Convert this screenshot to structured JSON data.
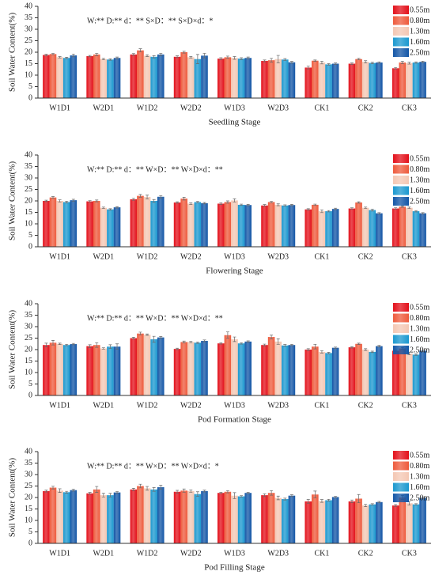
{
  "chart_data": [
    {
      "type": "bar",
      "xlabel": "Seedling Stage",
      "ylabel": "Soil Water Content(%)",
      "annotation": "W:** D:**  d：** S×D：** S×D×d：*",
      "categories": [
        "W1D1",
        "W2D1",
        "W1D2",
        "W2D2",
        "W1D3",
        "W2D3",
        "CK1",
        "CK2",
        "CK3"
      ],
      "ylim": [
        0,
        40
      ],
      "yticks": [
        0,
        5,
        10,
        15,
        20,
        25,
        30,
        35,
        40
      ],
      "legend": "upper right",
      "series": [
        {
          "name": "0.55m",
          "color": "#e3101a",
          "values": [
            18.8,
            18.3,
            19.0,
            18.0,
            17.2,
            16.2,
            13.3,
            15.0,
            13.0
          ],
          "errors": [
            0.3,
            0.3,
            0.4,
            0.4,
            0.4,
            0.4,
            0.6,
            0.3,
            0.3
          ]
        },
        {
          "name": "0.80m",
          "color": "#ee5a3c",
          "values": [
            19.2,
            19.0,
            20.8,
            20.0,
            17.8,
            16.5,
            16.3,
            17.0,
            15.5
          ],
          "errors": [
            0.3,
            0.5,
            0.7,
            0.4,
            0.5,
            0.8,
            0.3,
            0.3,
            0.5
          ]
        },
        {
          "name": "1.30m",
          "color": "#f4c7b3",
          "values": [
            17.8,
            17.0,
            18.5,
            17.8,
            17.5,
            17.0,
            15.5,
            15.8,
            15.2
          ],
          "errors": [
            0.3,
            0.3,
            0.4,
            0.3,
            0.6,
            1.6,
            0.6,
            0.5,
            0.4
          ]
        },
        {
          "name": "1.60m",
          "color": "#1b98cf",
          "values": [
            17.5,
            16.8,
            18.0,
            17.0,
            17.2,
            16.8,
            14.7,
            15.3,
            15.5
          ],
          "errors": [
            0.3,
            0.3,
            0.5,
            2.0,
            0.4,
            0.4,
            0.3,
            0.3,
            0.3
          ]
        },
        {
          "name": "2.50m",
          "color": "#1356a6",
          "values": [
            18.6,
            17.5,
            19.0,
            18.5,
            17.5,
            15.6,
            15.0,
            15.5,
            15.8
          ],
          "errors": [
            0.6,
            0.4,
            0.5,
            1.0,
            0.4,
            0.4,
            0.3,
            0.3,
            0.3
          ]
        }
      ]
    },
    {
      "type": "bar",
      "xlabel": "Flowering Stage",
      "ylabel": "Soil Water Content(%)",
      "annotation": "W:** D:**  d：** W×D：** W×D×d：**",
      "categories": [
        "W1D1",
        "W2D1",
        "W1D2",
        "W2D2",
        "W1D3",
        "W2D3",
        "CK1",
        "CK2",
        "CK3"
      ],
      "ylim": [
        0,
        40
      ],
      "yticks": [
        0,
        5,
        10,
        15,
        20,
        25,
        30,
        35,
        40
      ],
      "legend": "upper right",
      "series": [
        {
          "name": "0.55m",
          "color": "#e3101a",
          "values": [
            20.0,
            19.8,
            20.7,
            19.3,
            18.8,
            18.0,
            16.3,
            16.7,
            16.7
          ],
          "errors": [
            0.3,
            0.3,
            0.4,
            0.3,
            0.4,
            0.4,
            0.3,
            0.3,
            0.3
          ]
        },
        {
          "name": "0.80m",
          "color": "#ee5a3c",
          "values": [
            21.5,
            20.0,
            22.2,
            21.0,
            19.5,
            19.5,
            18.3,
            19.3,
            17.5
          ],
          "errors": [
            0.4,
            0.4,
            0.6,
            0.6,
            0.5,
            0.3,
            0.3,
            0.3,
            0.3
          ]
        },
        {
          "name": "1.30m",
          "color": "#f4c7b3",
          "values": [
            20.0,
            17.0,
            21.7,
            18.8,
            20.2,
            18.3,
            15.5,
            17.0,
            17.0
          ],
          "errors": [
            0.5,
            0.3,
            0.8,
            0.3,
            0.7,
            0.4,
            0.6,
            0.3,
            0.3
          ]
        },
        {
          "name": "1.60m",
          "color": "#1b98cf",
          "values": [
            19.5,
            16.3,
            20.0,
            19.5,
            18.3,
            18.0,
            15.5,
            16.0,
            15.5
          ],
          "errors": [
            0.4,
            0.3,
            0.6,
            0.3,
            0.3,
            0.3,
            0.3,
            0.4,
            0.3
          ]
        },
        {
          "name": "2.50m",
          "color": "#1356a6",
          "values": [
            20.3,
            17.2,
            21.8,
            19.0,
            18.2,
            18.2,
            16.5,
            14.6,
            14.6
          ],
          "errors": [
            0.4,
            0.3,
            0.5,
            0.3,
            0.3,
            0.3,
            0.3,
            0.3,
            0.3
          ]
        }
      ]
    },
    {
      "type": "bar",
      "xlabel": "Pod Formation Stage",
      "ylabel": "Soil Water Content(%)",
      "annotation": "W:** D:** d：** W×D：** W×D×d：**",
      "categories": [
        "W1D1",
        "W2D1",
        "W1D2",
        "W2D2",
        "W1D3",
        "W2D3",
        "CK1",
        "CK2",
        "CK3"
      ],
      "ylim": [
        0,
        40
      ],
      "yticks": [
        0,
        5,
        10,
        15,
        20,
        25,
        30,
        35,
        40
      ],
      "legend": "upper right",
      "series": [
        {
          "name": "0.55m",
          "color": "#e3101a",
          "values": [
            22.0,
            21.5,
            25.0,
            20.3,
            22.7,
            22.0,
            20.0,
            21.0,
            19.5
          ],
          "errors": [
            0.8,
            0.6,
            0.4,
            0.3,
            0.3,
            0.4,
            0.4,
            0.3,
            0.3
          ]
        },
        {
          "name": "0.80m",
          "color": "#ee5a3c",
          "values": [
            23.0,
            22.0,
            27.0,
            23.3,
            26.3,
            25.5,
            21.3,
            22.5,
            20.5
          ],
          "errors": [
            1.0,
            1.0,
            0.6,
            0.4,
            1.4,
            0.8,
            1.0,
            0.3,
            0.4
          ]
        },
        {
          "name": "1.30m",
          "color": "#f4c7b3",
          "values": [
            22.5,
            20.5,
            26.5,
            23.3,
            24.5,
            23.5,
            19.0,
            20.0,
            18.3
          ],
          "errors": [
            0.3,
            0.3,
            0.3,
            0.3,
            1.0,
            1.2,
            0.5,
            0.4,
            0.6
          ]
        },
        {
          "name": "1.60m",
          "color": "#1b98cf",
          "values": [
            22.0,
            21.3,
            24.5,
            23.0,
            22.7,
            21.8,
            18.5,
            19.0,
            17.8
          ],
          "errors": [
            0.3,
            0.8,
            1.3,
            0.3,
            0.3,
            0.4,
            0.3,
            0.3,
            0.3
          ]
        },
        {
          "name": "2.50m",
          "color": "#1356a6",
          "values": [
            22.4,
            21.3,
            25.3,
            23.8,
            23.5,
            22.0,
            20.8,
            21.5,
            19.5
          ],
          "errors": [
            0.3,
            1.2,
            0.4,
            0.4,
            0.3,
            0.3,
            0.3,
            0.3,
            0.3
          ]
        }
      ]
    },
    {
      "type": "bar",
      "xlabel": "Pod Filling Stage",
      "ylabel": "Soil Water Content(%)",
      "annotation": "W:** D:** d：** W×D：** W×D×d：*",
      "categories": [
        "W1D1",
        "W2D1",
        "W1D2",
        "W2D2",
        "W1D3",
        "W2D3",
        "CK1",
        "CK2",
        "CK3"
      ],
      "ylim": [
        0,
        40
      ],
      "yticks": [
        0,
        5,
        10,
        15,
        20,
        25,
        30,
        35,
        40
      ],
      "legend": "upper right",
      "series": [
        {
          "name": "0.55m",
          "color": "#e3101a",
          "values": [
            22.8,
            21.8,
            23.5,
            22.5,
            22.0,
            21.0,
            18.3,
            18.3,
            16.5
          ],
          "errors": [
            0.4,
            0.4,
            0.5,
            0.6,
            0.3,
            0.6,
            0.8,
            0.6,
            0.4
          ]
        },
        {
          "name": "0.80m",
          "color": "#ee5a3c",
          "values": [
            24.3,
            23.5,
            25.0,
            23.0,
            22.5,
            22.0,
            21.3,
            19.5,
            20.0
          ],
          "errors": [
            0.6,
            1.3,
            0.8,
            0.7,
            0.5,
            1.0,
            1.5,
            1.8,
            0.9
          ]
        },
        {
          "name": "1.30m",
          "color": "#f4c7b3",
          "values": [
            23.0,
            21.0,
            24.0,
            22.8,
            20.8,
            19.8,
            18.5,
            16.5,
            17.5
          ],
          "errors": [
            0.8,
            0.8,
            0.8,
            0.5,
            1.3,
            0.8,
            0.6,
            0.5,
            0.8
          ]
        },
        {
          "name": "1.60m",
          "color": "#1b98cf",
          "values": [
            22.3,
            21.0,
            23.5,
            21.5,
            20.5,
            19.3,
            18.8,
            17.0,
            17.0
          ],
          "errors": [
            0.4,
            0.8,
            0.8,
            1.0,
            0.3,
            0.4,
            0.4,
            0.3,
            0.3
          ]
        },
        {
          "name": "2.50m",
          "color": "#1356a6",
          "values": [
            23.2,
            22.2,
            24.5,
            22.8,
            22.0,
            20.8,
            20.2,
            18.0,
            19.8
          ],
          "errors": [
            0.4,
            0.4,
            0.8,
            0.4,
            0.3,
            0.4,
            0.3,
            0.3,
            0.3
          ]
        }
      ]
    }
  ]
}
